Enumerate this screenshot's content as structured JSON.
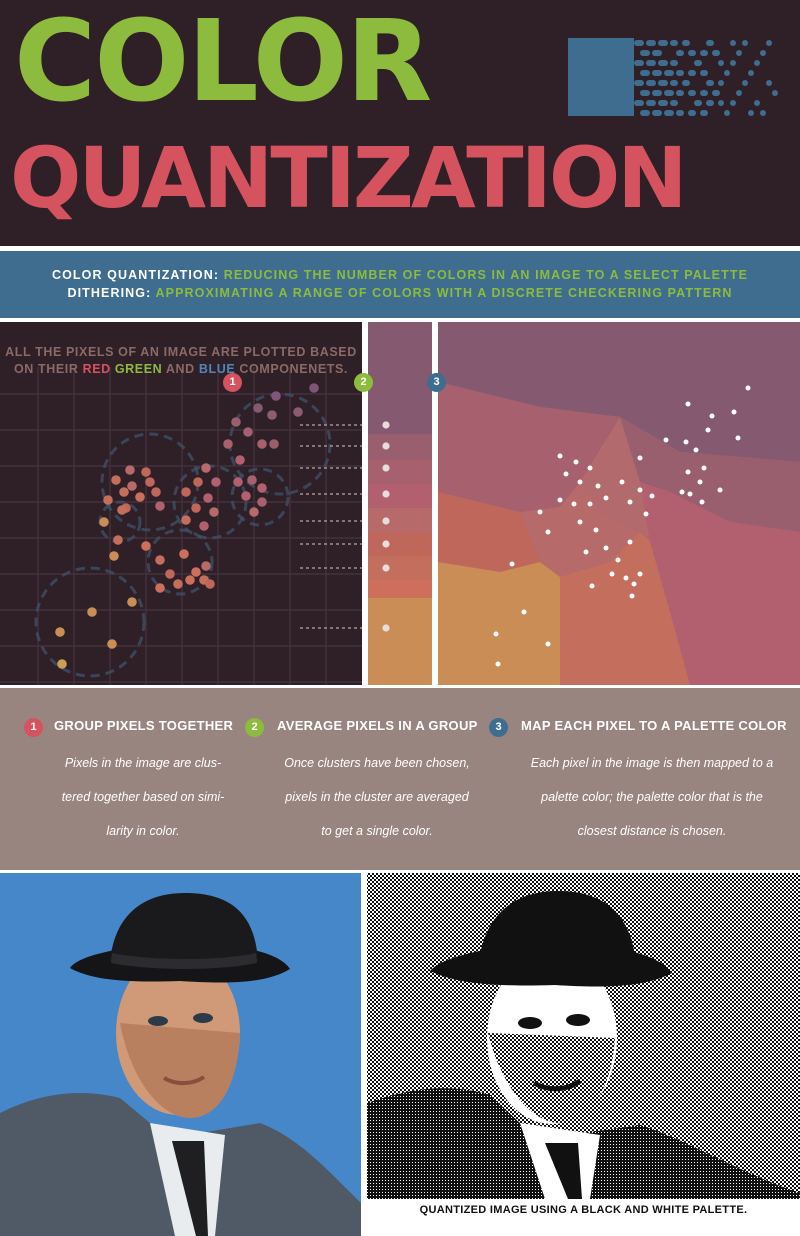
{
  "title": {
    "line1": "COLOR",
    "line2": "QUANTIZATION"
  },
  "colors": {
    "background": "#2f1f27",
    "green": "#8dbb3d",
    "red": "#d4535f",
    "blue": "#3f6d8f",
    "step_bg": "#998580",
    "caption": "#8a6a66"
  },
  "logo_icon": "pixel-dithering-icon",
  "definitions": {
    "quantization_term": "COLOR QUANTIZATION:",
    "quantization_text": "REDUCING THE NUMBER OF COLORS IN AN IMAGE TO A SELECT PALETTE",
    "dithering_term": "DITHERING:",
    "dithering_text": "APPROXIMATING A RANGE OF COLORS WITH A DISCRETE CHECKERING PATTERN"
  },
  "plot_caption": {
    "line1": "ALL THE PIXELS OF AN IMAGE ARE PLOTTED BASED",
    "line2_prefix": "ON THEIR",
    "red": "RED",
    "green": "GREEN",
    "middle": "AND",
    "blue": "BLUE",
    "suffix": "COMPONENETS."
  },
  "plot_badges": [
    "1",
    "2",
    "3"
  ],
  "palette": [
    "#855a70",
    "#9a5f6f",
    "#a6606e",
    "#b25f70",
    "#b66a6a",
    "#c0675c",
    "#c46f5e",
    "#cd6f5c",
    "#c98d55"
  ],
  "steps": [
    {
      "number": "1",
      "title": "GROUP PIXELS TOGETHER",
      "desc": [
        "Pixels in the image are clus-",
        "tered together based on simi-",
        "larity in color."
      ]
    },
    {
      "number": "2",
      "title": "AVERAGE PIXELS IN A GROUP",
      "desc": [
        "Once clusters have been chosen,",
        "pixels in the cluster are averaged",
        "to get a single color."
      ]
    },
    {
      "number": "3",
      "title": "MAP EACH PIXEL TO A PALETTE COLOR",
      "desc": [
        "Each pixel in the image is then mapped to a",
        "palette color; the palette color that is the",
        "closest distance is chosen."
      ]
    }
  ],
  "photo_caption": "QUANTIZED IMAGE USING A BLACK AND WHITE PALETTE."
}
